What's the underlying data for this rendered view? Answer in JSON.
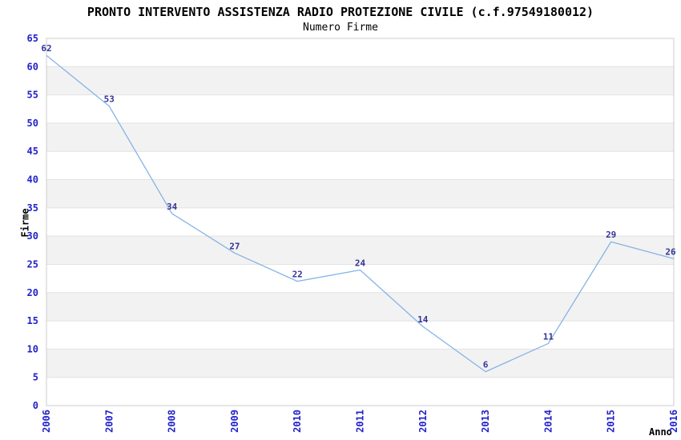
{
  "page": {
    "background": "#ffffff"
  },
  "chart_data": {
    "type": "line",
    "title": "PRONTO INTERVENTO ASSISTENZA RADIO PROTEZIONE CIVILE (c.f.97549180012)",
    "subtitle": "Numero Firme",
    "xlabel": "Anno",
    "ylabel": "Firme",
    "categories": [
      "2006",
      "2007",
      "2008",
      "2009",
      "2010",
      "2011",
      "2012",
      "2013",
      "2014",
      "2015",
      "2016"
    ],
    "series": [
      {
        "name": "Numero Firme",
        "values": [
          62,
          53,
          34,
          27,
          22,
          24,
          14,
          6,
          11,
          29,
          26
        ]
      }
    ],
    "ylim": [
      0,
      65
    ],
    "ytick_step": 5,
    "grid": "horizontal-bands-alternating",
    "legend": "none",
    "colors": {
      "line": "#85b3e6",
      "point_label": "#333399",
      "axis_tick_label": "#2222cc",
      "band_fill": "#f2f2f2",
      "grid_line": "#e2e2e2",
      "plot_border": "#cccccc",
      "title_text": "#000000"
    }
  }
}
